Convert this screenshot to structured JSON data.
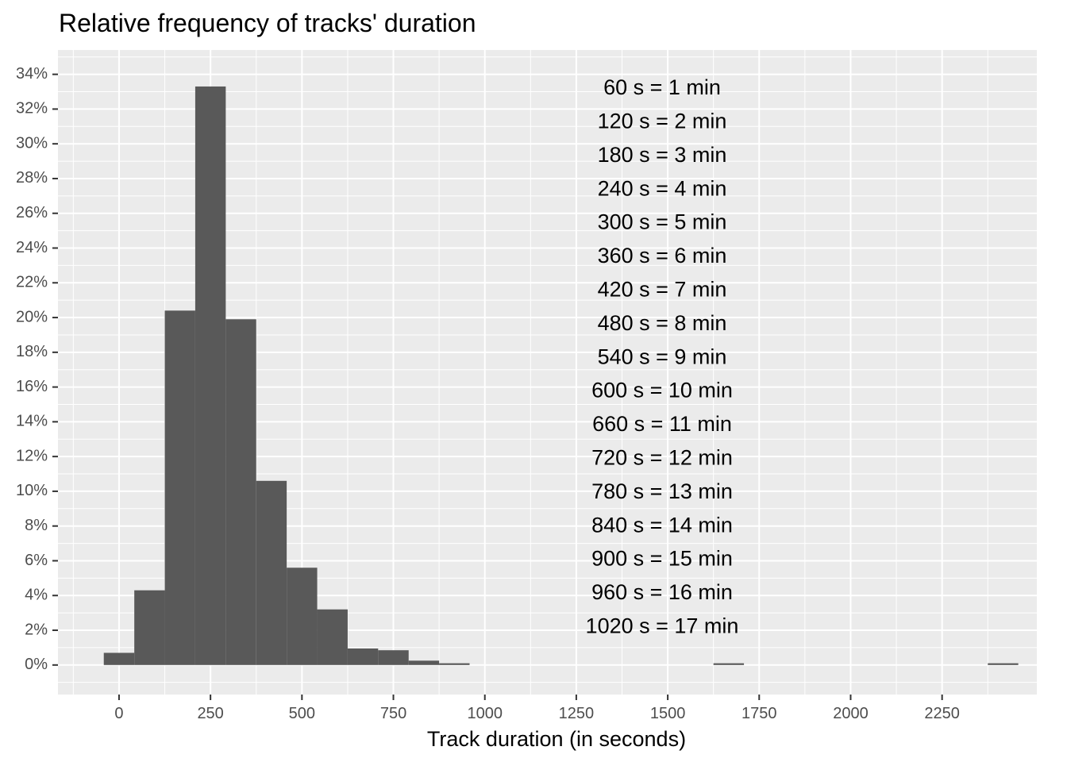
{
  "chart_data": {
    "type": "bar",
    "title": "Relative frequency of tracks' duration",
    "xlabel": "Track duration (in seconds)",
    "ylabel": "",
    "xlim": [
      -167,
      2509
    ],
    "ylim": [
      -1.7,
      35.4
    ],
    "x_ticks": [
      0,
      250,
      500,
      750,
      1000,
      1250,
      1500,
      1750,
      2000,
      2250
    ],
    "x_tick_labels": [
      "0",
      "250",
      "500",
      "750",
      "1000",
      "1250",
      "1500",
      "1750",
      "2000",
      "2250"
    ],
    "y_ticks": [
      0,
      2,
      4,
      6,
      8,
      10,
      12,
      14,
      16,
      18,
      20,
      22,
      24,
      26,
      28,
      30,
      32,
      34
    ],
    "y_tick_labels": [
      "0%",
      "2%",
      "4%",
      "6%",
      "8%",
      "10%",
      "12%",
      "14%",
      "16%",
      "18%",
      "20%",
      "22%",
      "24%",
      "26%",
      "28%",
      "30%",
      "32%",
      "34%"
    ],
    "grid": true,
    "bin_width": 83.3,
    "bars": [
      {
        "x0": -41.7,
        "x1": 41.7,
        "value": 0.7
      },
      {
        "x0": 41.7,
        "x1": 125,
        "value": 4.3
      },
      {
        "x0": 125,
        "x1": 208.3,
        "value": 20.4
      },
      {
        "x0": 208.3,
        "x1": 291.7,
        "value": 33.3
      },
      {
        "x0": 291.7,
        "x1": 375,
        "value": 19.9
      },
      {
        "x0": 375,
        "x1": 458.3,
        "value": 10.6
      },
      {
        "x0": 458.3,
        "x1": 541.7,
        "value": 5.6
      },
      {
        "x0": 541.7,
        "x1": 625,
        "value": 3.2
      },
      {
        "x0": 625,
        "x1": 708.3,
        "value": 0.95
      },
      {
        "x0": 708.3,
        "x1": 791.7,
        "value": 0.85
      },
      {
        "x0": 791.7,
        "x1": 875,
        "value": 0.25
      },
      {
        "x0": 875,
        "x1": 958.3,
        "value": 0.1
      },
      {
        "x0": 1625,
        "x1": 1708.3,
        "value": 0.1
      },
      {
        "x0": 2375,
        "x1": 2458.3,
        "value": 0.1
      }
    ],
    "annotations": [
      "60 s = 1 min",
      "120 s = 2 min",
      "180 s = 3 min",
      "240 s = 4 min",
      "300 s = 5 min",
      "360 s = 6 min",
      "420 s = 7 min",
      "480 s = 8 min",
      "540 s = 9 min",
      "600 s = 10 min",
      "660 s = 11 min",
      "720 s = 12 min",
      "780 s = 13 min",
      "840 s = 14 min",
      "900 s = 15 min",
      "960 s = 16 min",
      "1020 s = 17 min"
    ],
    "colors": {
      "bar": "#595959",
      "panel": "#ebebeb",
      "grid": "#ffffff",
      "text": "#000000",
      "tick_text": "#4d4d4d"
    }
  }
}
